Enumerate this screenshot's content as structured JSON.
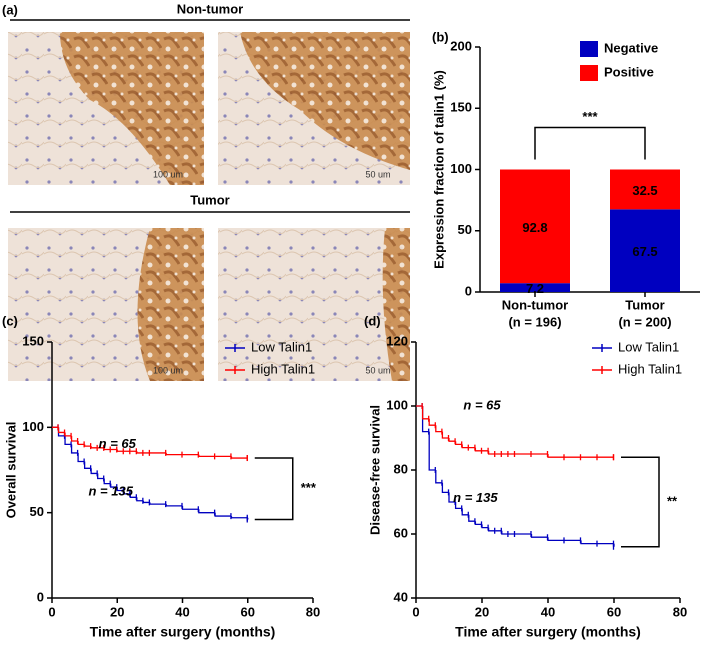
{
  "image_panel": {
    "label": "(a)",
    "top_title": "Non-tumor",
    "bottom_title": "Tumor",
    "scale_bars": [
      "100 um",
      "50 um",
      "100 um",
      "50 um"
    ]
  },
  "chart_data": [
    {
      "type": "bar",
      "panel_label": "(b)",
      "stacked": true,
      "categories": [
        "Non-tumor",
        "Tumor"
      ],
      "category_notes": [
        "(n = 196)",
        "(n = 200)"
      ],
      "series": [
        {
          "name": "Negative",
          "color": "#0000c0",
          "values": [
            7.2,
            67.5
          ]
        },
        {
          "name": "Positive",
          "color": "#ff0000",
          "values": [
            92.8,
            32.5
          ]
        }
      ],
      "ylabel": "Expression fraction of talin1 (%)",
      "ylim": [
        0,
        200
      ],
      "yticks": [
        0,
        50,
        100,
        150,
        200
      ],
      "significance": "***",
      "legend": "upper right"
    },
    {
      "type": "line",
      "panel_label": "(c)",
      "ylabel": "Overall survival",
      "xlabel": "Time after surgery (months)",
      "x": [
        0,
        2,
        4,
        6,
        8,
        10,
        12,
        14,
        16,
        18,
        20,
        22,
        24,
        26,
        28,
        30,
        35,
        40,
        45,
        50,
        55,
        60
      ],
      "series": [
        {
          "name": "Low Talin1",
          "color": "#0000c0",
          "values": [
            100,
            95,
            90,
            85,
            80,
            76,
            73,
            70,
            67,
            65,
            63,
            61,
            59,
            57,
            56,
            55,
            54,
            52,
            50,
            48,
            47,
            46
          ]
        },
        {
          "name": "High Talin1",
          "color": "#ff0000",
          "values": [
            100,
            97,
            95,
            92,
            90,
            89,
            88,
            88,
            87,
            87,
            86,
            86,
            86,
            85,
            85,
            85,
            84,
            84,
            83,
            83,
            82,
            82
          ]
        }
      ],
      "annotations": [
        "n = 65",
        "n = 135"
      ],
      "significance": "***",
      "xlim": [
        0,
        80
      ],
      "xticks": [
        0,
        20,
        40,
        60,
        80
      ],
      "ylim": [
        0,
        150
      ],
      "yticks": [
        0,
        50,
        100,
        150
      ],
      "legend": "upper right"
    },
    {
      "type": "line",
      "panel_label": "(d)",
      "ylabel": "Disease-free survival",
      "xlabel": "Time after surgery (months)",
      "x": [
        0,
        2,
        4,
        6,
        8,
        10,
        12,
        14,
        16,
        18,
        20,
        22,
        24,
        26,
        28,
        30,
        35,
        40,
        45,
        50,
        55,
        60
      ],
      "series": [
        {
          "name": "Low Talin1",
          "color": "#0000c0",
          "values": [
            100,
            92,
            80,
            76,
            73,
            70,
            68,
            66,
            64,
            63,
            62,
            61,
            61,
            60,
            60,
            60,
            59,
            58,
            58,
            57,
            57,
            56
          ]
        },
        {
          "name": "High Talin1",
          "color": "#ff0000",
          "values": [
            100,
            96,
            94,
            92,
            90,
            89,
            88,
            87,
            87,
            86,
            86,
            85,
            85,
            85,
            85,
            85,
            85,
            84,
            84,
            84,
            84,
            84
          ]
        }
      ],
      "annotations": [
        "n = 65",
        "n = 135"
      ],
      "significance": "**",
      "xlim": [
        0,
        80
      ],
      "xticks": [
        0,
        20,
        40,
        60,
        80
      ],
      "ylim": [
        40,
        120
      ],
      "yticks": [
        40,
        60,
        80,
        100,
        120
      ],
      "legend": "upper right"
    }
  ]
}
